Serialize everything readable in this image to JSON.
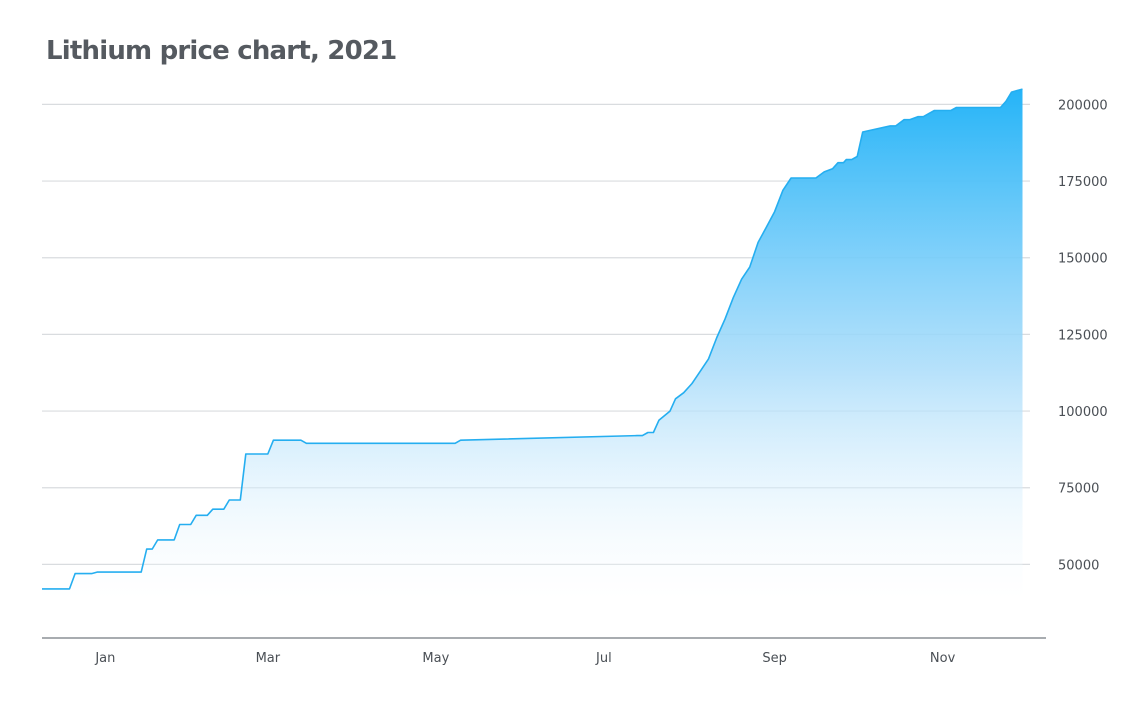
{
  "title": "Lithium price chart, 2021",
  "colors": {
    "line": "#25aef0",
    "fill_top": "#25b4f8",
    "fill_bottom": "#ffffff",
    "grid": "#d9dcdf",
    "axis": "#8c9096",
    "text": "#4a4f55"
  },
  "chart_data": {
    "type": "area",
    "title": "Lithium price chart, 2021",
    "xlabel": "",
    "ylabel": "",
    "x_ticks": [
      {
        "label": "Jan",
        "day": 15
      },
      {
        "label": "Mar",
        "day": 74
      },
      {
        "label": "May",
        "day": 135
      },
      {
        "label": "Jul",
        "day": 196
      },
      {
        "label": "Sep",
        "day": 258
      },
      {
        "label": "Nov",
        "day": 319
      }
    ],
    "y_ticks": [
      50000,
      75000,
      100000,
      125000,
      150000,
      175000,
      200000
    ],
    "xlim": [
      -8,
      350
    ],
    "ylim": [
      26000,
      206000
    ],
    "grid": true,
    "legend": "none",
    "series": [
      {
        "x": [
          -8,
          2,
          4,
          10,
          12,
          28,
          30,
          32,
          34,
          40,
          42,
          46,
          48,
          52,
          54,
          58,
          60,
          64,
          66,
          74,
          76,
          86,
          88,
          108,
          110,
          142,
          144,
          208,
          210,
          212,
          214,
          216,
          220,
          222,
          225,
          228,
          231,
          234,
          237,
          240,
          243,
          246,
          249,
          252,
          255,
          258,
          261,
          264,
          267,
          270,
          273,
          276,
          279,
          281,
          283,
          284,
          286,
          288,
          290,
          300,
          302,
          305,
          307,
          310,
          312,
          314,
          316,
          318,
          320,
          322,
          324,
          326,
          334,
          336,
          340,
          342,
          344,
          348
        ],
        "values": [
          42000,
          42000,
          47000,
          47000,
          47500,
          47500,
          55000,
          55000,
          58000,
          58000,
          63000,
          63000,
          66000,
          66000,
          68000,
          68000,
          71000,
          71000,
          86000,
          86000,
          90500,
          90500,
          89500,
          89500,
          89500,
          89500,
          90500,
          92000,
          92000,
          93000,
          93000,
          97000,
          100000,
          104000,
          106000,
          109000,
          113000,
          117000,
          124000,
          130000,
          137000,
          143000,
          147000,
          155000,
          160000,
          165000,
          172000,
          176000,
          176000,
          176000,
          176000,
          178000,
          179000,
          181000,
          181000,
          182000,
          182000,
          183000,
          191000,
          193000,
          193000,
          195000,
          195000,
          196000,
          196000,
          197000,
          198000,
          198000,
          198000,
          198000,
          199000,
          199000,
          199000,
          199000,
          199000,
          201000,
          204000,
          205000
        ]
      }
    ]
  }
}
